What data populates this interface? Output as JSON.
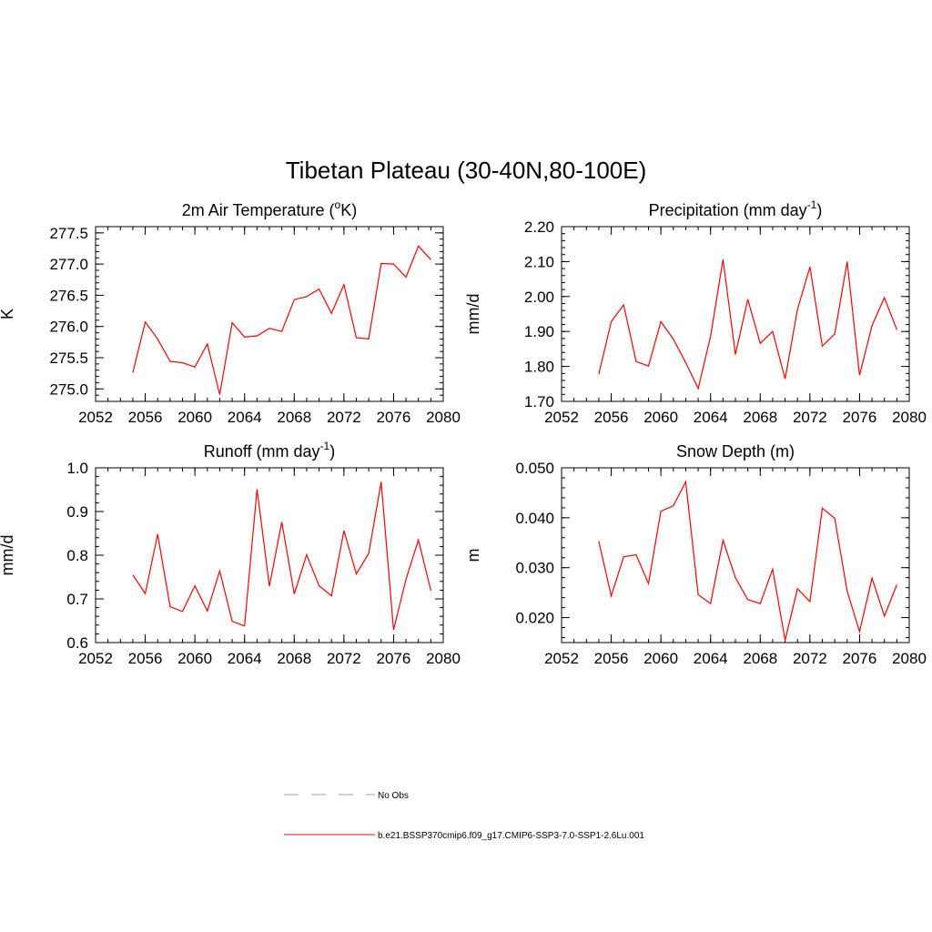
{
  "figure": {
    "title": "Tibetan Plateau (30-40N,80-100E)",
    "line_color": "#ff0000",
    "legend": [
      {
        "label": "No Obs",
        "color": "#9999dd",
        "dashed": true
      },
      {
        "label": "b.e21.BSSP370cmip6.f09_g17.CMIP6-SSP3-7.0-SSP1-2.6Lu.001",
        "color": "#ff0000",
        "dashed": false
      }
    ]
  },
  "chart_data": [
    {
      "type": "line",
      "title": "2m Air Temperature (",
      "title_sup": "o",
      "title_after": "K)",
      "title_tail": "",
      "ylabel": "K",
      "xlabel": "",
      "xlim": [
        2052,
        2080
      ],
      "ylim": [
        274.8,
        277.6
      ],
      "xticks": [
        2052,
        2056,
        2060,
        2064,
        2068,
        2072,
        2076,
        2080
      ],
      "yticks": [
        275.0,
        275.5,
        276.0,
        276.5,
        277.0,
        277.5
      ],
      "ytick_labels": [
        "275.0",
        "275.5",
        "276.0",
        "276.5",
        "277.0",
        "277.5"
      ],
      "x": [
        2055,
        2056,
        2057,
        2058,
        2059,
        2060,
        2061,
        2062,
        2063,
        2064,
        2065,
        2066,
        2067,
        2068,
        2069,
        2070,
        2071,
        2072,
        2073,
        2074,
        2075,
        2076,
        2077,
        2078,
        2079
      ],
      "y": [
        275.26,
        276.07,
        275.8,
        275.44,
        275.42,
        275.35,
        275.72,
        274.91,
        276.06,
        275.83,
        275.85,
        275.97,
        275.92,
        276.43,
        276.48,
        276.6,
        276.21,
        276.67,
        275.82,
        275.8,
        277.01,
        277.0,
        276.79,
        277.29,
        277.07
      ]
    },
    {
      "type": "line",
      "title": "Precipitation (mm day",
      "title_sup": "-1",
      "title_after": ")",
      "title_tail": "",
      "ylabel": "mm/d",
      "xlabel": "",
      "xlim": [
        2052,
        2080
      ],
      "ylim": [
        1.7,
        2.2
      ],
      "xticks": [
        2052,
        2056,
        2060,
        2064,
        2068,
        2072,
        2076,
        2080
      ],
      "yticks": [
        1.7,
        1.8,
        1.9,
        2.0,
        2.1,
        2.2
      ],
      "ytick_labels": [
        "1.70",
        "1.80",
        "1.90",
        "2.00",
        "2.10",
        "2.20"
      ],
      "x": [
        2055,
        2056,
        2057,
        2058,
        2059,
        2060,
        2061,
        2062,
        2063,
        2064,
        2065,
        2066,
        2067,
        2068,
        2069,
        2070,
        2071,
        2072,
        2073,
        2074,
        2075,
        2076,
        2077,
        2078,
        2079
      ],
      "y": [
        1.778,
        1.928,
        1.976,
        1.814,
        1.801,
        1.928,
        1.878,
        1.811,
        1.737,
        1.886,
        2.106,
        1.834,
        1.992,
        1.866,
        1.9,
        1.764,
        1.963,
        2.085,
        1.858,
        1.893,
        2.1,
        1.775,
        1.917,
        1.997,
        1.905
      ]
    },
    {
      "type": "line",
      "title": "Runoff (mm day",
      "title_sup": "-1",
      "title_after": ")",
      "title_tail": "",
      "ylabel": "mm/d",
      "xlabel": "",
      "xlim": [
        2052,
        2080
      ],
      "ylim": [
        0.6,
        1.0
      ],
      "xticks": [
        2052,
        2056,
        2060,
        2064,
        2068,
        2072,
        2076,
        2080
      ],
      "yticks": [
        0.6,
        0.7,
        0.8,
        0.9,
        1.0
      ],
      "ytick_labels": [
        "0.6",
        "0.7",
        "0.8",
        "0.9",
        "1.0"
      ],
      "x": [
        2055,
        2056,
        2057,
        2058,
        2059,
        2060,
        2061,
        2062,
        2063,
        2064,
        2065,
        2066,
        2067,
        2068,
        2069,
        2070,
        2071,
        2072,
        2073,
        2074,
        2075,
        2076,
        2077,
        2078,
        2079
      ],
      "y": [
        0.755,
        0.712,
        0.848,
        0.682,
        0.671,
        0.73,
        0.672,
        0.764,
        0.649,
        0.638,
        0.951,
        0.729,
        0.876,
        0.711,
        0.801,
        0.73,
        0.707,
        0.856,
        0.757,
        0.804,
        0.968,
        0.629,
        0.745,
        0.835,
        0.719
      ]
    },
    {
      "type": "line",
      "title": "Snow Depth (m)",
      "title_sup": "",
      "title_after": "",
      "title_tail": "",
      "ylabel": "m",
      "xlabel": "",
      "xlim": [
        2052,
        2080
      ],
      "ylim": [
        0.015,
        0.05
      ],
      "xticks": [
        2052,
        2056,
        2060,
        2064,
        2068,
        2072,
        2076,
        2080
      ],
      "yticks": [
        0.02,
        0.03,
        0.04,
        0.05
      ],
      "ytick_labels": [
        "0.020",
        "0.030",
        "0.040",
        "0.050"
      ],
      "x": [
        2055,
        2056,
        2057,
        2058,
        2059,
        2060,
        2061,
        2062,
        2063,
        2064,
        2065,
        2066,
        2067,
        2068,
        2069,
        2070,
        2071,
        2072,
        2073,
        2074,
        2075,
        2076,
        2077,
        2078,
        2079
      ],
      "y": [
        0.0353,
        0.0243,
        0.0322,
        0.0326,
        0.0268,
        0.0413,
        0.0424,
        0.0472,
        0.0246,
        0.0228,
        0.0355,
        0.028,
        0.0236,
        0.0228,
        0.0297,
        0.0155,
        0.0258,
        0.0232,
        0.0419,
        0.0399,
        0.0253,
        0.0172,
        0.0279,
        0.0203,
        0.0266
      ]
    }
  ]
}
